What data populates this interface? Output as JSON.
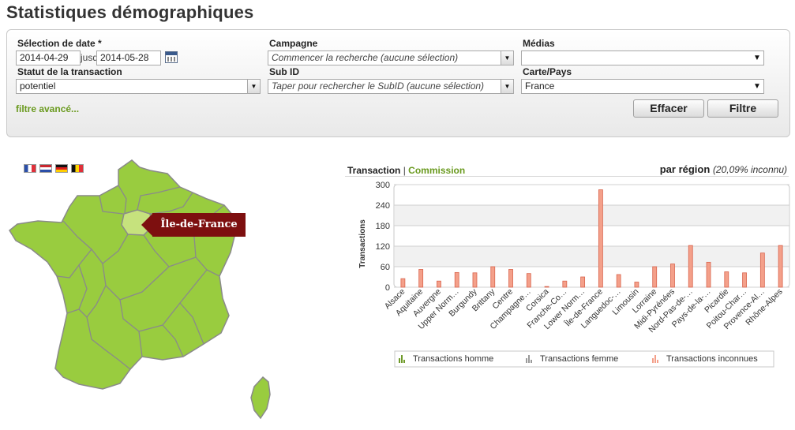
{
  "page": {
    "title": "Statistiques démographiques"
  },
  "filters": {
    "date": {
      "label": "Sélection de date *",
      "from": "2014-04-29",
      "joiner": "jusq",
      "to": "2014-05-28"
    },
    "campaign": {
      "label": "Campagne",
      "placeholder": "Commencer la recherche (aucune sélection)"
    },
    "media": {
      "label": "Médias",
      "value": ""
    },
    "status": {
      "label": "Statut de la transaction",
      "value": "potentiel"
    },
    "subid": {
      "label": "Sub ID",
      "placeholder": "Taper pour rechercher le SubID (aucune sélection)"
    },
    "country": {
      "label": "Carte/Pays",
      "value": "France"
    },
    "advanced_link": "filtre avancé...",
    "clear_button": "Effacer",
    "filter_button": "Filtre"
  },
  "map": {
    "flags": [
      "flag-fr-icon",
      "flag-nl-icon",
      "flag-de-icon",
      "flag-be-icon"
    ],
    "tooltip": "Île-de-France",
    "colors": {
      "region": "#99cc3f",
      "highlight": "#c6e27d",
      "border": "#8a8a8a",
      "tooltip": "#7d0f0f"
    }
  },
  "chart_panel": {
    "tab_transaction": "Transaction",
    "tab_separator": "|",
    "tab_commission": "Commission",
    "scope_label": "par région",
    "unknown_note": "(20,09% inconnu)"
  },
  "chart_data": {
    "type": "bar",
    "ylabel": "Transactions",
    "ylim": [
      0,
      300
    ],
    "yticks": [
      0,
      60,
      120,
      180,
      240,
      300
    ],
    "grid": true,
    "legend_position": "bottom",
    "categories": [
      "Alsace",
      "Aquitaine",
      "Auvergne",
      "Upper Norm…",
      "Burgundy",
      "Brittany",
      "Centre",
      "Champagne…",
      "Corsica",
      "Franche-Co…",
      "Lower Norm…",
      "Île-de-France",
      "Languedoc-…",
      "Limousin",
      "Lorraine",
      "Midi-Pyrénées",
      "Nord-Pas-de-…",
      "Pays-de-la-…",
      "Picardie",
      "Poitou-Char…",
      "Provence-Al…",
      "Rhône-Alpes"
    ],
    "series": [
      {
        "name": "Transactions homme",
        "color": "#6f9a2a",
        "values": [
          0,
          0,
          0,
          0,
          0,
          0,
          0,
          0,
          0,
          0,
          0,
          0,
          0,
          0,
          0,
          0,
          0,
          0,
          0,
          0,
          0,
          0
        ]
      },
      {
        "name": "Transactions femme",
        "color": "#9a9a9a",
        "values": [
          0,
          0,
          0,
          0,
          0,
          0,
          0,
          0,
          0,
          0,
          0,
          0,
          0,
          0,
          0,
          0,
          0,
          0,
          0,
          0,
          0,
          0
        ]
      },
      {
        "name": "Transactions inconnues",
        "color": "#f4a08a",
        "values": [
          25,
          52,
          18,
          43,
          42,
          60,
          52,
          40,
          2,
          18,
          30,
          285,
          37,
          15,
          60,
          68,
          122,
          73,
          45,
          42,
          100,
          122
        ]
      }
    ]
  }
}
